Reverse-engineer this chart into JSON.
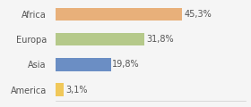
{
  "categories": [
    "America",
    "Asia",
    "Europa",
    "Africa"
  ],
  "values": [
    3.1,
    19.8,
    31.8,
    45.3
  ],
  "labels": [
    "3,1%",
    "19,8%",
    "31,8%",
    "45,3%"
  ],
  "bar_colors": [
    "#f0c85a",
    "#6b8ec4",
    "#b5c98a",
    "#e8b07a"
  ],
  "background_color": "#f5f5f5",
  "xlim": [
    0,
    68
  ],
  "label_fontsize": 7.0,
  "tick_fontsize": 7.0,
  "bar_height": 0.52
}
